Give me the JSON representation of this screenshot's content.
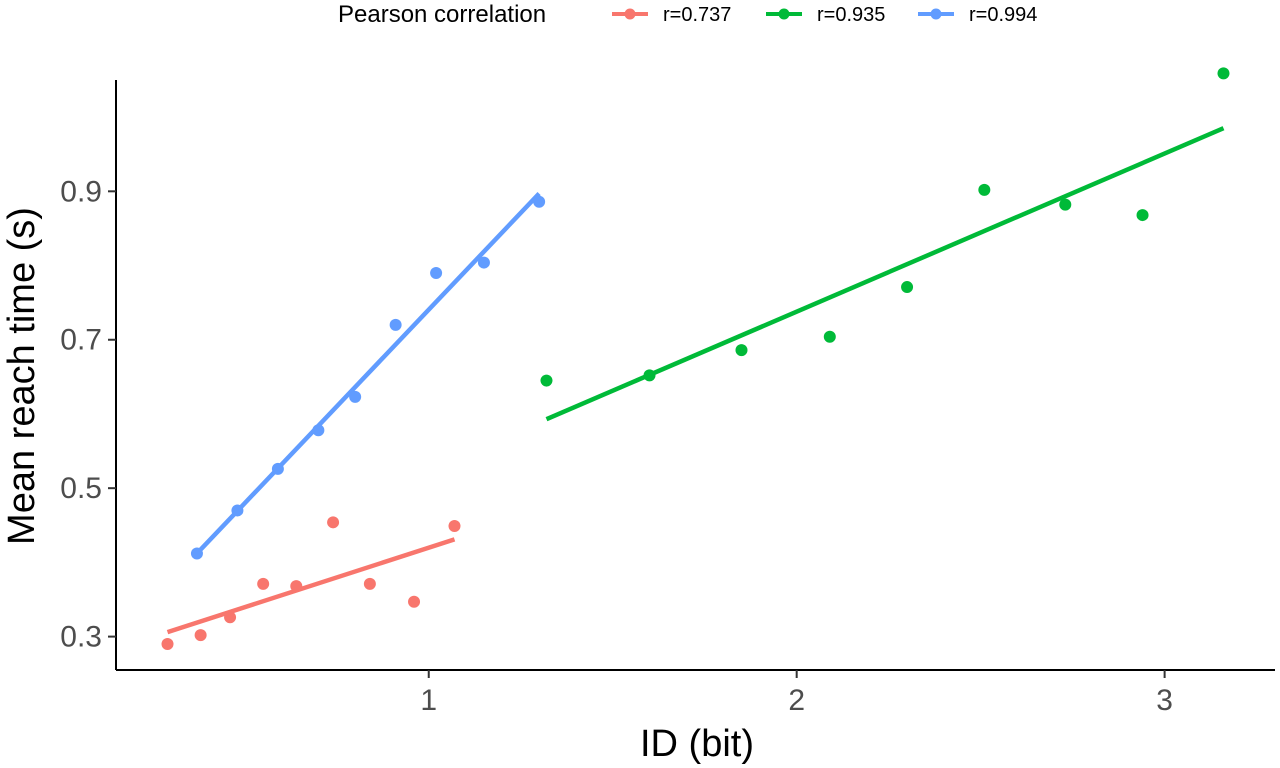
{
  "chart_data": {
    "type": "scatter",
    "xlabel": "ID (bit)",
    "ylabel": "Mean reach time (s)",
    "xlim": [
      0.15,
      3.3
    ],
    "ylim": [
      0.255,
      1.05
    ],
    "x_ticks": [
      1,
      2,
      3
    ],
    "x_tick_labels": [
      "1",
      "2",
      "3"
    ],
    "y_ticks": [
      0.3,
      0.5,
      0.7,
      0.9
    ],
    "y_tick_labels": [
      "0.3",
      "0.5",
      "0.7",
      "0.9"
    ],
    "grid": false,
    "legend": {
      "title": "Pearson correlation",
      "position": "top"
    },
    "series": [
      {
        "name": "r=0.737",
        "color": "#F8766D",
        "x": [
          0.29,
          0.38,
          0.46,
          0.55,
          0.64,
          0.74,
          0.84,
          0.96,
          1.07
        ],
        "y": [
          0.29,
          0.302,
          0.326,
          0.371,
          0.368,
          0.454,
          0.371,
          0.347,
          0.449
        ],
        "fit": {
          "x": [
            0.29,
            1.07
          ],
          "y": [
            0.306,
            0.431
          ]
        }
      },
      {
        "name": "r=0.935",
        "color": "#00BA38",
        "x": [
          1.32,
          1.6,
          1.85,
          2.09,
          2.3,
          2.51,
          2.73,
          2.94,
          3.16
        ],
        "y": [
          0.645,
          0.652,
          0.686,
          0.704,
          0.771,
          0.902,
          0.882,
          0.868,
          1.059
        ],
        "fit": {
          "x": [
            1.32,
            3.16
          ],
          "y": [
            0.593,
            0.985
          ]
        }
      },
      {
        "name": "r=0.994",
        "color": "#619CFF",
        "x": [
          0.37,
          0.48,
          0.59,
          0.7,
          0.8,
          0.91,
          1.02,
          1.15,
          1.3
        ],
        "y": [
          0.412,
          0.47,
          0.526,
          0.578,
          0.623,
          0.72,
          0.79,
          0.804,
          0.886
        ],
        "fit": {
          "x": [
            0.37,
            1.3
          ],
          "y": [
            0.412,
            0.897
          ]
        }
      }
    ]
  }
}
